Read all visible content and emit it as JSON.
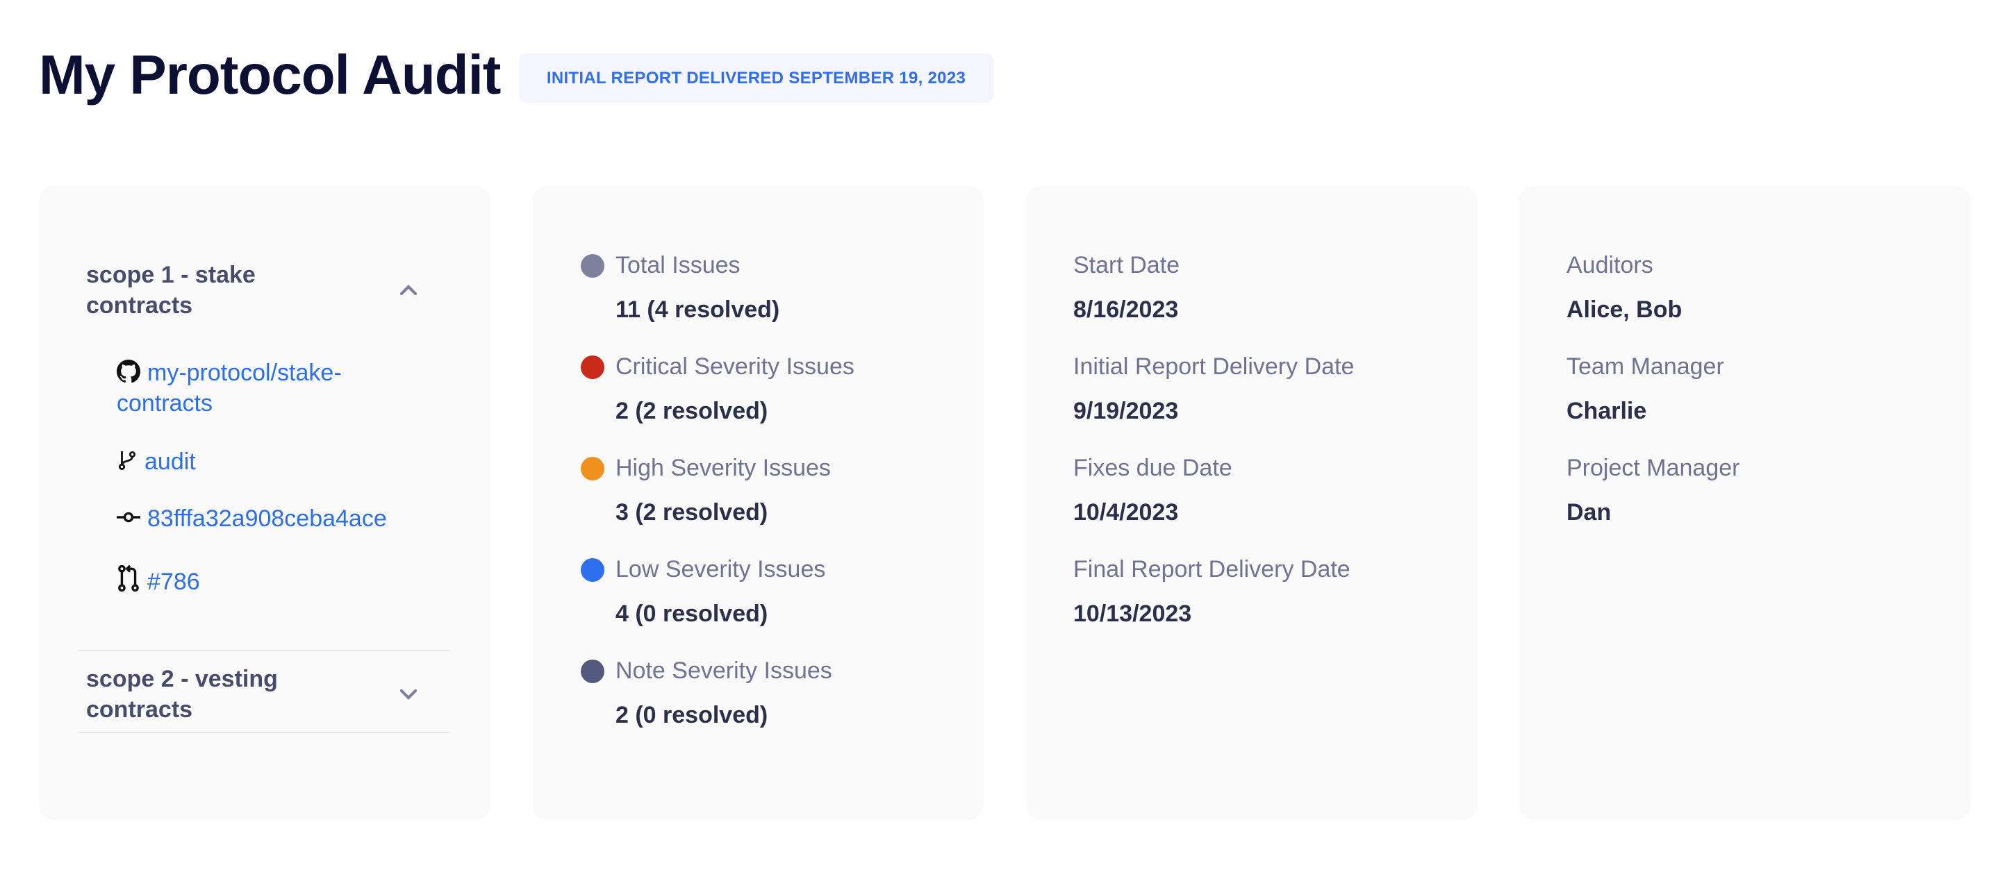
{
  "header": {
    "title": "My Protocol Audit",
    "badge": "INITIAL REPORT DELIVERED SEPTEMBER 19, 2023"
  },
  "scopes": [
    {
      "title": "scope 1 - stake contracts",
      "expanded": true,
      "chevron": "chevron-up-icon",
      "items": [
        {
          "icon": "github-icon",
          "label": "my-protocol/stake-contracts"
        },
        {
          "icon": "git-branch-icon",
          "label": "audit"
        },
        {
          "icon": "git-commit-icon",
          "label": "83fffa32a908ceba4ace"
        },
        {
          "icon": "pull-request-icon",
          "label": "#786"
        }
      ]
    },
    {
      "title": "scope 2 - vesting contracts",
      "expanded": false,
      "chevron": "chevron-down-icon"
    }
  ],
  "issues": [
    {
      "label": "Total Issues",
      "value": "11 (4 resolved)",
      "color": "#7e809e"
    },
    {
      "label": "Critical Severity Issues",
      "value": "2 (2 resolved)",
      "color": "#c92a1a"
    },
    {
      "label": "High Severity Issues",
      "value": "3 (2 resolved)",
      "color": "#f0901e"
    },
    {
      "label": "Low Severity Issues",
      "value": "4 (0 resolved)",
      "color": "#2f6fee"
    },
    {
      "label": "Note Severity Issues",
      "value": "2 (0 resolved)",
      "color": "#545a7d"
    }
  ],
  "dates": [
    {
      "label": "Start Date",
      "value": "8/16/2023"
    },
    {
      "label": "Initial Report Delivery Date",
      "value": "9/19/2023"
    },
    {
      "label": "Fixes due Date",
      "value": "10/4/2023"
    },
    {
      "label": "Final Report Delivery Date",
      "value": "10/13/2023"
    }
  ],
  "people": [
    {
      "label": "Auditors",
      "value": "Alice, Bob"
    },
    {
      "label": "Team Manager",
      "value": "Charlie"
    },
    {
      "label": "Project Manager",
      "value": "Dan"
    }
  ]
}
